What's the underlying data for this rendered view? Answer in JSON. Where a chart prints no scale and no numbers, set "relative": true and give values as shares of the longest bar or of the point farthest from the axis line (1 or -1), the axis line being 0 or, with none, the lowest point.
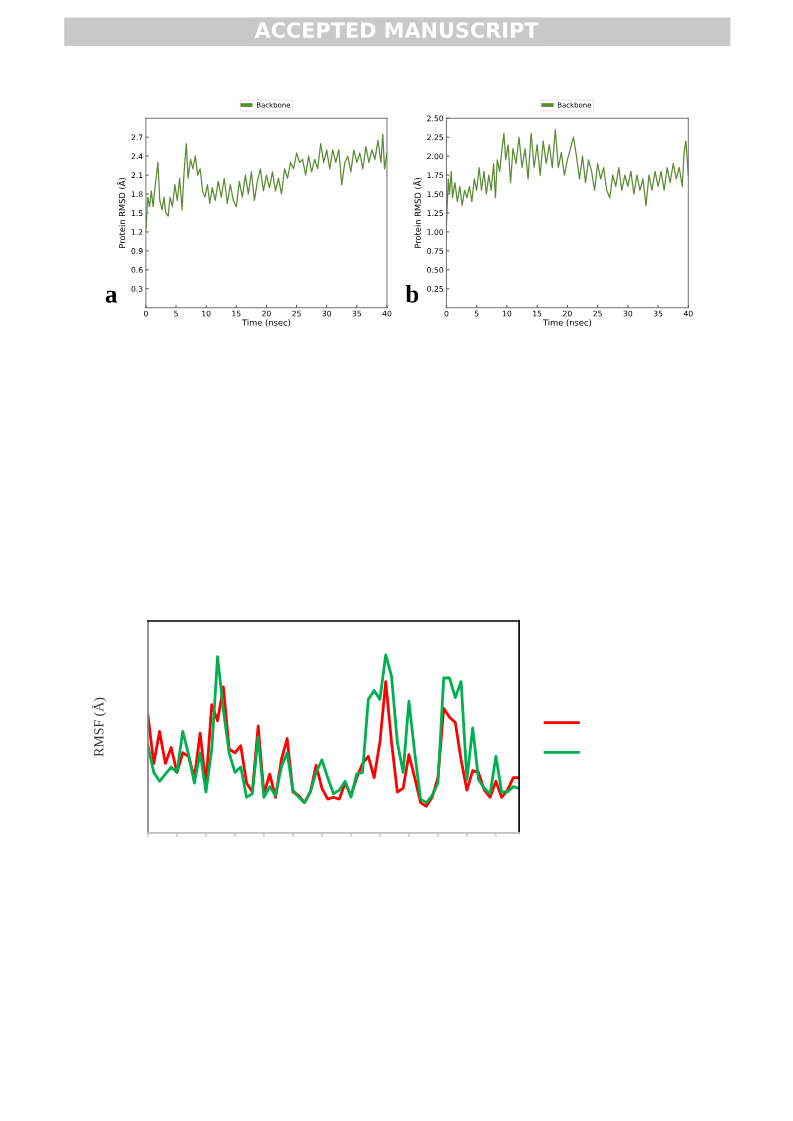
{
  "chart_data": [
    {
      "type": "line",
      "xlabel": "Time (nsec)",
      "ylabel": "Protein RMSD (Å)",
      "xlim": [
        0,
        40
      ],
      "ylim": [
        0,
        3.0
      ],
      "xticks": [
        0,
        5,
        10,
        15,
        20,
        25,
        30,
        35,
        40
      ],
      "yticks": [
        0.3,
        0.6,
        0.9,
        1.2,
        1.5,
        1.8,
        2.1,
        2.4,
        2.7
      ],
      "grid": false,
      "legend": "top",
      "annotations": [
        "a",
        "ACCEPTED MANUSCRIPT"
      ],
      "series": [
        {
          "name": "Backbone",
          "color": "#5b8c35",
          "x": [
            0,
            0.3,
            0.6,
            0.9,
            1.2,
            1.5,
            2,
            2.3,
            2.7,
            3,
            3.3,
            3.7,
            4,
            4.4,
            4.8,
            5.2,
            5.6,
            6,
            6.3,
            6.7,
            7,
            7.4,
            7.8,
            8.2,
            8.6,
            9,
            9.4,
            9.8,
            10.2,
            10.6,
            11,
            11.5,
            12,
            12.5,
            13,
            13.5,
            14,
            14.5,
            15,
            15.5,
            16,
            16.5,
            17,
            17.5,
            18,
            18.5,
            19,
            19.5,
            20,
            20.5,
            21,
            21.5,
            22,
            22.5,
            23,
            23.5,
            24,
            24.5,
            25,
            25.5,
            26,
            26.5,
            27,
            27.5,
            28,
            28.5,
            29,
            29.5,
            30,
            30.5,
            31,
            31.5,
            32,
            32.5,
            33,
            33.5,
            34,
            34.5,
            35,
            35.5,
            36,
            36.5,
            37,
            37.5,
            38,
            38.5,
            39,
            39.3,
            39.6,
            40
          ],
          "values": [
            1.25,
            1.75,
            1.6,
            1.85,
            1.6,
            1.9,
            2.3,
            1.7,
            1.55,
            1.75,
            1.5,
            1.45,
            1.75,
            1.6,
            1.95,
            1.7,
            2.05,
            1.55,
            2.1,
            2.6,
            2.05,
            2.35,
            2.2,
            2.4,
            2.1,
            2.2,
            1.85,
            1.75,
            1.95,
            1.65,
            1.9,
            1.7,
            2.0,
            1.75,
            2.05,
            1.65,
            1.95,
            1.7,
            1.6,
            2.0,
            1.75,
            2.1,
            1.8,
            2.15,
            1.7,
            2.0,
            2.2,
            1.85,
            2.1,
            1.9,
            2.15,
            1.85,
            2.05,
            1.8,
            2.2,
            2.05,
            2.3,
            2.2,
            2.45,
            2.3,
            2.35,
            2.1,
            2.4,
            2.15,
            2.35,
            2.2,
            2.6,
            2.3,
            2.5,
            2.2,
            2.5,
            2.3,
            2.5,
            1.95,
            2.3,
            2.4,
            2.15,
            2.5,
            2.3,
            2.45,
            2.2,
            2.55,
            2.3,
            2.5,
            2.35,
            2.65,
            2.3,
            2.75,
            2.2,
            2.45
          ]
        }
      ]
    },
    {
      "type": "line",
      "xlabel": "Time (nsec)",
      "ylabel": "Protein RMSD (Å)",
      "xlim": [
        0,
        40
      ],
      "ylim": [
        0,
        2.5
      ],
      "xticks": [
        0,
        5,
        10,
        15,
        20,
        25,
        30,
        35,
        40
      ],
      "yticks": [
        0.25,
        {
          "value": 0.5,
          "label": "0.50"
        },
        0.75,
        {
          "value": 1.0,
          "label": "1.00"
        },
        1.25,
        {
          "value": 1.5,
          "label": "1.50"
        },
        1.75,
        {
          "value": 2.0,
          "label": "2.00"
        },
        2.25,
        {
          "value": 2.5,
          "label": "2.50"
        }
      ],
      "grid": false,
      "legend": "top",
      "annotations": [
        "b"
      ],
      "series": [
        {
          "name": "Backbone",
          "color": "#5b8c35",
          "x": [
            0,
            0.3,
            0.5,
            0.8,
            1,
            1.4,
            1.8,
            2.2,
            2.6,
            3,
            3.4,
            3.8,
            4.2,
            4.6,
            5,
            5.4,
            5.8,
            6.2,
            6.6,
            7,
            7.4,
            7.8,
            8.1,
            8.4,
            8.8,
            9.2,
            9.5,
            9.8,
            10.2,
            10.6,
            11,
            11.5,
            12,
            12.5,
            13,
            13.5,
            14,
            14.5,
            15,
            15.5,
            16,
            16.5,
            17,
            17.5,
            18,
            18.5,
            19,
            19.5,
            20,
            20.5,
            21,
            21.5,
            22,
            22.5,
            23,
            23.5,
            24,
            24.5,
            25,
            25.5,
            26,
            26.5,
            27,
            27.5,
            28,
            28.5,
            29,
            29.5,
            30,
            30.5,
            31,
            31.5,
            32,
            32.5,
            33,
            33.5,
            34,
            34.5,
            35,
            35.5,
            36,
            36.5,
            37,
            37.5,
            38,
            38.5,
            39,
            39.3,
            39.6,
            40
          ],
          "values": [
            1.1,
            1.7,
            1.5,
            1.8,
            1.45,
            1.65,
            1.4,
            1.6,
            1.35,
            1.55,
            1.45,
            1.6,
            1.4,
            1.7,
            1.55,
            1.85,
            1.55,
            1.8,
            1.5,
            1.75,
            1.55,
            1.9,
            1.45,
            1.95,
            1.8,
            2.1,
            2.3,
            1.95,
            2.15,
            1.65,
            2.1,
            1.9,
            2.25,
            1.85,
            2.1,
            1.7,
            2.3,
            1.85,
            2.15,
            1.75,
            2.2,
            1.9,
            2.15,
            1.85,
            2.35,
            1.85,
            2.05,
            1.75,
            1.95,
            2.1,
            2.25,
            2.0,
            1.7,
            2.0,
            1.65,
            1.95,
            1.8,
            1.55,
            1.9,
            1.7,
            1.85,
            1.55,
            1.45,
            1.75,
            1.6,
            1.85,
            1.55,
            1.75,
            1.6,
            1.8,
            1.5,
            1.75,
            1.55,
            1.7,
            1.35,
            1.75,
            1.55,
            1.8,
            1.6,
            1.8,
            1.55,
            1.85,
            1.65,
            1.9,
            1.7,
            1.85,
            1.6,
            2.05,
            2.2,
            1.75
          ]
        }
      ]
    },
    {
      "type": "line",
      "ylabel": "RMSF (Å)",
      "relative": true,
      "grid": false,
      "categories": [
        null,
        null,
        null,
        null,
        null,
        null,
        null,
        null,
        null,
        null,
        null,
        null,
        null,
        null,
        null,
        null,
        null,
        null,
        null,
        null,
        null,
        null,
        null,
        null,
        null,
        null,
        null,
        null,
        null,
        null,
        null,
        null,
        null,
        null,
        null,
        null,
        null,
        null,
        null,
        null,
        null,
        null,
        null,
        null,
        null,
        null,
        null,
        null,
        null,
        null,
        null,
        null,
        null,
        null,
        null,
        null,
        null,
        null,
        null,
        null,
        null,
        null,
        null,
        null,
        null
      ],
      "series": [
        {
          "color": "#ff0000",
          "values": [
            0.66,
            0.39,
            0.57,
            0.39,
            0.48,
            0.34,
            0.45,
            0.43,
            0.31,
            0.56,
            0.27,
            0.72,
            0.63,
            0.82,
            0.47,
            0.45,
            0.49,
            0.28,
            0.23,
            0.6,
            0.22,
            0.33,
            0.2,
            0.41,
            0.53,
            0.23,
            0.21,
            0.17,
            0.23,
            0.38,
            0.25,
            0.19,
            0.2,
            0.19,
            0.28,
            0.21,
            0.31,
            0.39,
            0.43,
            0.31,
            0.51,
            0.85,
            0.51,
            0.23,
            0.25,
            0.44,
            0.31,
            0.17,
            0.15,
            0.2,
            0.31,
            0.7,
            0.65,
            0.62,
            0.41,
            0.24,
            0.35,
            0.34,
            0.24,
            0.2,
            0.29,
            0.2,
            0.24,
            0.31,
            0.31
          ]
        },
        {
          "color": "#00b050",
          "values": [
            0.49,
            0.34,
            0.29,
            0.33,
            0.37,
            0.34,
            0.57,
            0.44,
            0.28,
            0.45,
            0.23,
            0.47,
            0.99,
            0.69,
            0.45,
            0.34,
            0.37,
            0.2,
            0.22,
            0.54,
            0.2,
            0.26,
            0.21,
            0.37,
            0.45,
            0.24,
            0.2,
            0.17,
            0.23,
            0.34,
            0.41,
            0.31,
            0.22,
            0.24,
            0.29,
            0.2,
            0.33,
            0.34,
            0.75,
            0.8,
            0.75,
            1,
            0.88,
            0.51,
            0.34,
            0.74,
            0.45,
            0.19,
            0.17,
            0.21,
            0.28,
            0.87,
            0.87,
            0.76,
            0.85,
            0.3,
            0.59,
            0.3,
            0.25,
            0.22,
            0.43,
            0.23,
            0.23,
            0.26,
            0.25
          ]
        }
      ]
    }
  ]
}
